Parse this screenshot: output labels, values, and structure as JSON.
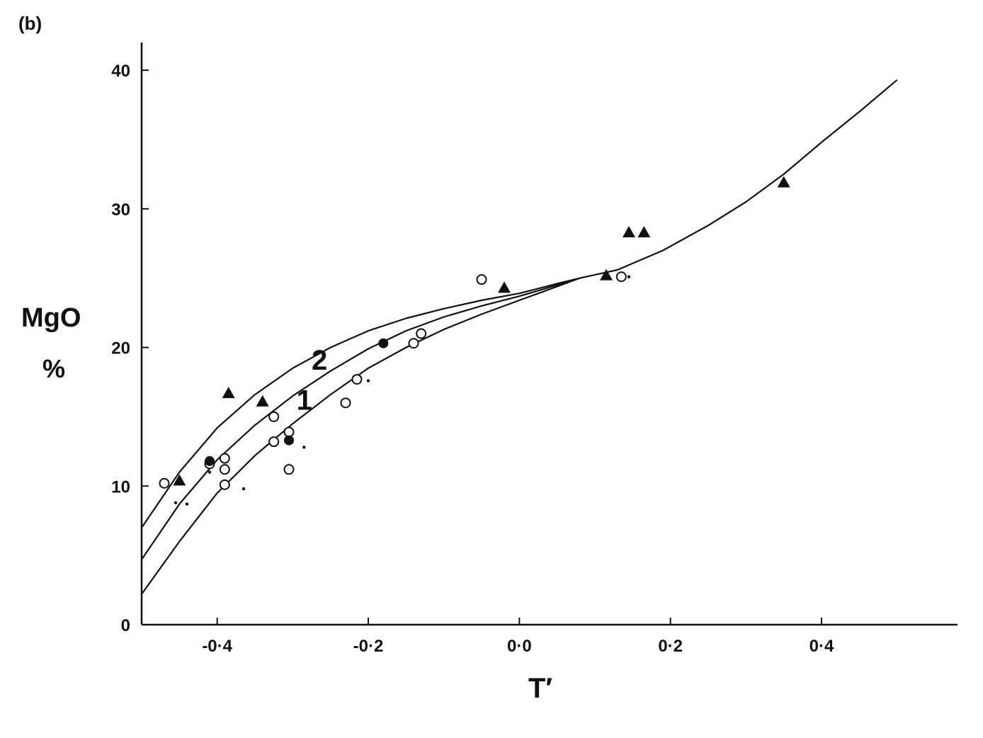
{
  "chart_data": {
    "type": "scatter",
    "panel_label": "(b)",
    "title": "",
    "xlabel": "T′",
    "ylabel_lines": [
      "MgO",
      "%"
    ],
    "xlim": [
      -0.5,
      0.58
    ],
    "ylim": [
      0,
      42
    ],
    "x_ticks": [
      -0.4,
      -0.2,
      0.0,
      0.2,
      0.4
    ],
    "x_tick_labels": [
      "-0·4",
      "-0·2",
      "0·0",
      "0·2",
      "0·4"
    ],
    "y_ticks": [
      0,
      10,
      20,
      30,
      40
    ],
    "y_tick_labels": [
      "0",
      "10",
      "20",
      "30",
      "40"
    ],
    "grid": false,
    "curves": [
      {
        "label": "2",
        "label_at": [
          -0.275,
          18.4
        ],
        "points": [
          [
            -0.5,
            7.0
          ],
          [
            -0.45,
            11.0
          ],
          [
            -0.4,
            14.2
          ],
          [
            -0.35,
            16.6
          ],
          [
            -0.3,
            18.5
          ],
          [
            -0.25,
            20.0
          ],
          [
            -0.2,
            21.2
          ],
          [
            -0.15,
            22.1
          ],
          [
            -0.1,
            22.8
          ],
          [
            -0.05,
            23.4
          ],
          [
            0.0,
            23.9
          ],
          [
            0.05,
            24.6
          ],
          [
            0.08,
            25.0
          ]
        ]
      },
      {
        "label": "1",
        "label_at": [
          -0.295,
          15.5
        ],
        "points": [
          [
            -0.5,
            4.7
          ],
          [
            -0.45,
            8.7
          ],
          [
            -0.4,
            11.9
          ],
          [
            -0.35,
            14.4
          ],
          [
            -0.3,
            16.5
          ],
          [
            -0.25,
            18.3
          ],
          [
            -0.2,
            19.9
          ],
          [
            -0.15,
            21.2
          ],
          [
            -0.1,
            22.2
          ],
          [
            -0.05,
            23.0
          ],
          [
            0.0,
            23.7
          ],
          [
            0.05,
            24.5
          ],
          [
            0.08,
            25.0
          ]
        ]
      },
      {
        "label": "",
        "points": [
          [
            -0.5,
            2.2
          ],
          [
            -0.45,
            6.0
          ],
          [
            -0.4,
            9.5
          ],
          [
            -0.35,
            12.2
          ],
          [
            -0.3,
            14.5
          ],
          [
            -0.25,
            16.6
          ],
          [
            -0.2,
            18.5
          ],
          [
            -0.15,
            20.0
          ],
          [
            -0.1,
            21.3
          ],
          [
            -0.05,
            22.4
          ],
          [
            0.0,
            23.4
          ],
          [
            0.05,
            24.4
          ],
          [
            0.08,
            25.0
          ],
          [
            0.13,
            25.6
          ],
          [
            0.19,
            27.0
          ],
          [
            0.25,
            28.8
          ],
          [
            0.3,
            30.5
          ],
          [
            0.35,
            32.5
          ],
          [
            0.4,
            34.8
          ],
          [
            0.45,
            37.0
          ],
          [
            0.5,
            39.3
          ]
        ]
      }
    ],
    "series": [
      {
        "marker": "open-circle",
        "points": [
          [
            -0.47,
            10.2
          ],
          [
            -0.41,
            11.6
          ],
          [
            -0.39,
            12.0
          ],
          [
            -0.39,
            10.1
          ],
          [
            -0.39,
            11.2
          ],
          [
            -0.325,
            15.0
          ],
          [
            -0.325,
            13.2
          ],
          [
            -0.305,
            13.9
          ],
          [
            -0.305,
            11.2
          ],
          [
            -0.23,
            16.0
          ],
          [
            -0.215,
            17.7
          ],
          [
            -0.14,
            20.3
          ],
          [
            -0.13,
            21.0
          ],
          [
            -0.05,
            24.9
          ],
          [
            0.135,
            25.1
          ]
        ]
      },
      {
        "marker": "filled-circle",
        "points": [
          [
            -0.41,
            11.8
          ],
          [
            -0.305,
            13.3
          ],
          [
            -0.18,
            20.3
          ]
        ]
      },
      {
        "marker": "filled-triangle",
        "points": [
          [
            -0.45,
            10.4
          ],
          [
            -0.385,
            16.7
          ],
          [
            -0.34,
            16.1
          ],
          [
            -0.02,
            24.3
          ],
          [
            0.115,
            25.2
          ],
          [
            0.145,
            28.3
          ],
          [
            0.165,
            28.3
          ],
          [
            0.35,
            31.9
          ]
        ]
      },
      {
        "marker": "dot",
        "points": [
          [
            -0.455,
            8.8
          ],
          [
            -0.44,
            8.7
          ],
          [
            -0.41,
            11.0
          ],
          [
            -0.365,
            9.8
          ],
          [
            -0.285,
            12.8
          ],
          [
            -0.2,
            17.6
          ],
          [
            0.145,
            25.1
          ]
        ]
      }
    ]
  }
}
